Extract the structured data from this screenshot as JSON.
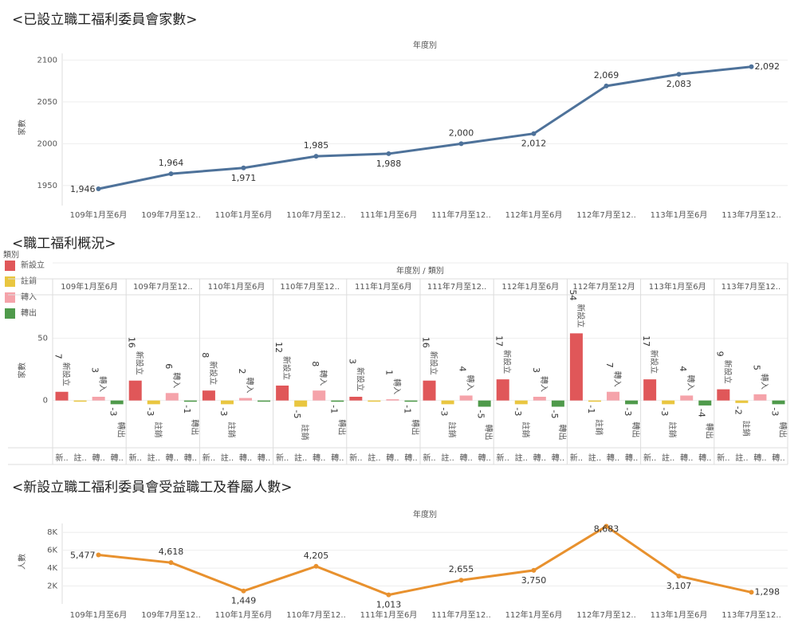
{
  "chart_data": [
    {
      "type": "line",
      "title": "<已設立職工福利委員會家數>",
      "header": "年度別",
      "y_label": "家數",
      "categories": [
        "109年1月至6月",
        "109年7月至12..",
        "110年1月至6月",
        "110年7月至12..",
        "111年1月至6月",
        "111年7月至12..",
        "112年1月至6月",
        "112年7月至12..",
        "113年1月至6月",
        "113年7月至12.."
      ],
      "values": [
        1946,
        1964,
        1971,
        1985,
        1988,
        2000,
        2012,
        2069,
        2083,
        2092
      ],
      "value_labels": [
        "1,946",
        "1,964",
        "1,971",
        "1,985",
        "1,988",
        "2,000",
        "2,012",
        "2,069",
        "2,083",
        "2,092"
      ],
      "color": "#4e729a",
      "ylim": [
        1926,
        2108
      ],
      "yticks": [
        1950,
        2000,
        2050,
        2100
      ],
      "grid": true
    },
    {
      "type": "bar",
      "title": "<職工福利概況>",
      "legend_title": "類別",
      "header": "年度別 / 類別",
      "y_label": "家數",
      "categories": [
        "109年1月至6月",
        "109年7月至12..",
        "110年1月至6月",
        "110年7月至12..",
        "111年1月至6月",
        "111年7月至12..",
        "112年1月至6月",
        "112年7月至12月",
        "113年1月至6月",
        "113年7月至12.."
      ],
      "series_labels": [
        "新..",
        "註..",
        "轉..",
        "轉.."
      ],
      "series": [
        {
          "name": "新設立",
          "color": "#e05759",
          "values": [
            7,
            16,
            8,
            12,
            3,
            16,
            17,
            54,
            17,
            9
          ]
        },
        {
          "name": "註銷",
          "color": "#e9c640",
          "values": [
            0,
            -3,
            -3,
            -5,
            0,
            -3,
            -3,
            -1,
            -3,
            -2
          ]
        },
        {
          "name": "轉入",
          "color": "#f5a3aa",
          "values": [
            3,
            6,
            2,
            8,
            1,
            4,
            3,
            7,
            4,
            5
          ]
        },
        {
          "name": "轉出",
          "color": "#4f9a4b",
          "values": [
            -3,
            -1,
            0,
            -1,
            -1,
            -5,
            -5,
            -3,
            -4,
            -3
          ]
        }
      ],
      "ylim": [
        -38,
        85
      ],
      "yticks": [
        0,
        50
      ],
      "grid": true
    },
    {
      "type": "line",
      "title": "<新設立職工福利委員會受益職工及眷屬人數>",
      "header": "年度別",
      "y_label": "人數",
      "categories": [
        "109年1月至6月",
        "109年7月至12..",
        "110年1月至6月",
        "110年7月至12..",
        "111年1月至6月",
        "111年7月至12..",
        "112年1月至6月",
        "112年7月至12..",
        "113年1月至6月",
        "113年7月至12.."
      ],
      "values": [
        5477,
        4618,
        1449,
        4205,
        1013,
        2655,
        3750,
        8683,
        3107,
        1298
      ],
      "value_labels": [
        "5,477",
        "4,618",
        "1,449",
        "4,205",
        "1,013",
        "2,655",
        "3,750",
        "8,683",
        "3,107",
        "1,298"
      ],
      "color": "#e8912e",
      "ylim": [
        0,
        9000
      ],
      "yticks": [
        {
          "value": 2000,
          "label": "2K"
        },
        {
          "value": 4000,
          "label": "4K"
        },
        {
          "value": 6000,
          "label": "6K"
        },
        {
          "value": 8000,
          "label": "8K"
        }
      ],
      "grid": true
    }
  ]
}
